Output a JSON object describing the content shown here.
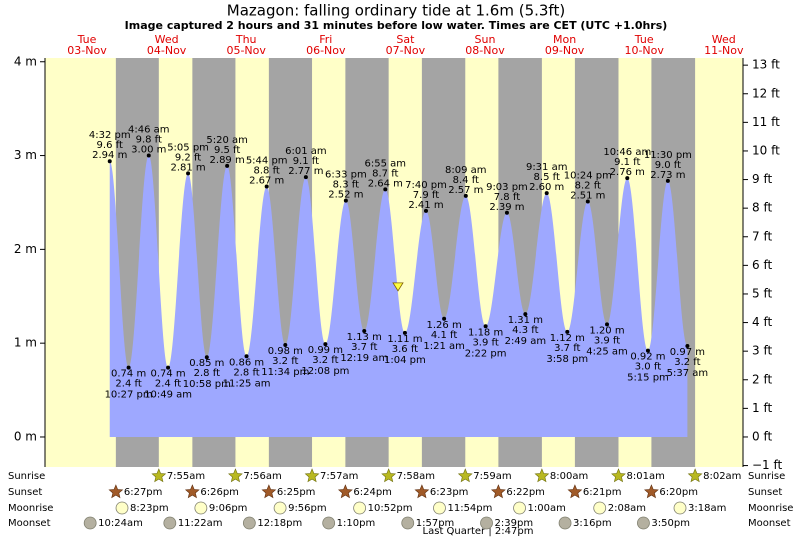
{
  "chart_data": {
    "type": "tide",
    "title": "Mazagon: falling  ordinary tide at 1.6m (5.3ft)",
    "subtitle": "Image captured 2 hours and 31 minutes before low water. Times are CET (UTC +1.0hrs)",
    "current_height": 1.6,
    "days": [
      {
        "name": "Tue",
        "date": "03-Nov"
      },
      {
        "name": "Wed",
        "date": "04-Nov"
      },
      {
        "name": "Thu",
        "date": "05-Nov"
      },
      {
        "name": "Fri",
        "date": "06-Nov"
      },
      {
        "name": "Sat",
        "date": "07-Nov"
      },
      {
        "name": "Sun",
        "date": "08-Nov"
      },
      {
        "name": "Mon",
        "date": "09-Nov"
      },
      {
        "name": "Tue",
        "date": "10-Nov"
      },
      {
        "name": "Wed",
        "date": "11-Nov"
      }
    ],
    "ylim": [
      -0.32,
      4.04
    ],
    "yticks": [
      {
        "value": 0,
        "label": "0 m"
      },
      {
        "value": 1,
        "label": "1 m"
      },
      {
        "value": 2,
        "label": "2 m"
      },
      {
        "value": 3,
        "label": "3 m"
      },
      {
        "value": 4,
        "label": "4 m"
      }
    ],
    "y2lim": [
      -1.05,
      13.25
    ],
    "y2ticks": [
      {
        "value": -1,
        "label": "−1 ft"
      },
      {
        "value": 0,
        "label": "0 ft"
      },
      {
        "value": 1,
        "label": "1 ft"
      },
      {
        "value": 2,
        "label": "2 ft"
      },
      {
        "value": 3,
        "label": "3 ft"
      },
      {
        "value": 4,
        "label": "4 ft"
      },
      {
        "value": 5,
        "label": "5 ft"
      },
      {
        "value": 6,
        "label": "6 ft"
      },
      {
        "value": 7,
        "label": "7 ft"
      },
      {
        "value": 8,
        "label": "8 ft"
      },
      {
        "value": 9,
        "label": "9 ft"
      },
      {
        "value": 10,
        "label": "10 ft"
      },
      {
        "value": 11,
        "label": "11 ft"
      },
      {
        "value": 12,
        "label": "12 ft"
      },
      {
        "value": 13,
        "label": "13 ft"
      }
    ],
    "colors": {
      "water": "#9ea8ff",
      "night": "#a4a4a4",
      "day": "#ffffc8"
    },
    "extremes": [
      {
        "time": "4:32 pm",
        "height": 2.94,
        "height_label": "2.94 m",
        "feet_label": "9.6 ft"
      },
      {
        "time": "10:27 pm",
        "height": 0.74,
        "height_label": "0.74 m",
        "feet_label": "2.4 ft"
      },
      {
        "time": "4:46 am",
        "height": 3.0,
        "height_label": "3.00 m",
        "feet_label": "9.8 ft"
      },
      {
        "time": "10:49 am",
        "height": 0.74,
        "height_label": "0.74 m",
        "feet_label": "2.4 ft"
      },
      {
        "time": "5:05 pm",
        "height": 2.81,
        "height_label": "2.81 m",
        "feet_label": "9.2 ft"
      },
      {
        "time": "10:58 pm",
        "height": 0.85,
        "height_label": "0.85 m",
        "feet_label": "2.8 ft"
      },
      {
        "time": "5:20 am",
        "height": 2.89,
        "height_label": "2.89 m",
        "feet_label": "9.5 ft"
      },
      {
        "time": "11:25 am",
        "height": 0.86,
        "height_label": "0.86 m",
        "feet_label": "2.8 ft"
      },
      {
        "time": "5:44 pm",
        "height": 2.67,
        "height_label": "2.67 m",
        "feet_label": "8.8 ft"
      },
      {
        "time": "11:34 pm",
        "height": 0.98,
        "height_label": "0.98 m",
        "feet_label": "3.2 ft"
      },
      {
        "time": "6:01 am",
        "height": 2.77,
        "height_label": "2.77 m",
        "feet_label": "9.1 ft"
      },
      {
        "time": "12:08 pm",
        "height": 0.99,
        "height_label": "0.99 m",
        "feet_label": "3.2 ft"
      },
      {
        "time": "6:33 pm",
        "height": 2.52,
        "height_label": "2.52 m",
        "feet_label": "8.3 ft"
      },
      {
        "time": "12:19 am",
        "height": 1.13,
        "height_label": "1.13 m",
        "feet_label": "3.7 ft"
      },
      {
        "time": "6:55 am",
        "height": 2.64,
        "height_label": "2.64 m",
        "feet_label": "8.7 ft"
      },
      {
        "time": "1:04 pm",
        "height": 1.11,
        "height_label": "1.11 m",
        "feet_label": "3.6 ft"
      },
      {
        "time": "7:40 pm",
        "height": 2.41,
        "height_label": "2.41 m",
        "feet_label": "7.9 ft"
      },
      {
        "time": "1:21 am",
        "height": 1.26,
        "height_label": "1.26 m",
        "feet_label": "4.1 ft"
      },
      {
        "time": "8:09 am",
        "height": 2.57,
        "height_label": "2.57 m",
        "feet_label": "8.4 ft"
      },
      {
        "time": "2:22 pm",
        "height": 1.18,
        "height_label": "1.18 m",
        "feet_label": "3.9 ft"
      },
      {
        "time": "9:03 pm",
        "height": 2.39,
        "height_label": "2.39 m",
        "feet_label": "7.8 ft"
      },
      {
        "time": "2:49 am",
        "height": 1.31,
        "height_label": "1.31 m",
        "feet_label": "4.3 ft"
      },
      {
        "time": "9:31 am",
        "height": 2.6,
        "height_label": "2.60 m",
        "feet_label": "8.5 ft"
      },
      {
        "time": "3:58 pm",
        "height": 1.12,
        "height_label": "1.12 m",
        "feet_label": "3.7 ft"
      },
      {
        "time": "10:24 pm",
        "height": 2.51,
        "height_label": "2.51 m",
        "feet_label": "8.2 ft"
      },
      {
        "time": "4:25 am",
        "height": 1.2,
        "height_label": "1.20 m",
        "feet_label": "3.9 ft"
      },
      {
        "time": "10:46 am",
        "height": 2.76,
        "height_label": "2.76 m",
        "feet_label": "9.1 ft"
      },
      {
        "time": "5:15 pm",
        "height": 0.92,
        "height_label": "0.92 m",
        "feet_label": "3.0 ft"
      },
      {
        "time": "11:30 pm",
        "height": 2.73,
        "height_label": "2.73 m",
        "feet_label": "9.0 ft"
      },
      {
        "time": "5:37 am",
        "height": 0.97,
        "height_label": "0.97 m",
        "feet_label": "3.2 ft"
      }
    ],
    "events": [
      {
        "name": "Sunrise",
        "times": [
          "7:55am",
          "7:56am",
          "7:57am",
          "7:58am",
          "7:59am",
          "8:00am",
          "8:01am",
          "8:02am"
        ]
      },
      {
        "name": "Sunset",
        "times": [
          "6:27pm",
          "6:26pm",
          "6:25pm",
          "6:24pm",
          "6:23pm",
          "6:22pm",
          "6:21pm",
          "6:20pm"
        ]
      },
      {
        "name": "Moonrise",
        "times": [
          "8:23pm",
          "9:06pm",
          "9:56pm",
          "10:52pm",
          "11:54pm",
          "1:00am",
          "2:08am",
          "3:18am"
        ]
      },
      {
        "name": "Moonset",
        "times": [
          "10:24am",
          "11:22am",
          "12:18pm",
          "1:10pm",
          "1:57pm",
          "2:39pm",
          "3:16pm",
          "3:50pm"
        ]
      }
    ],
    "moon_phase": "Last Quarter | 2:47pm"
  }
}
